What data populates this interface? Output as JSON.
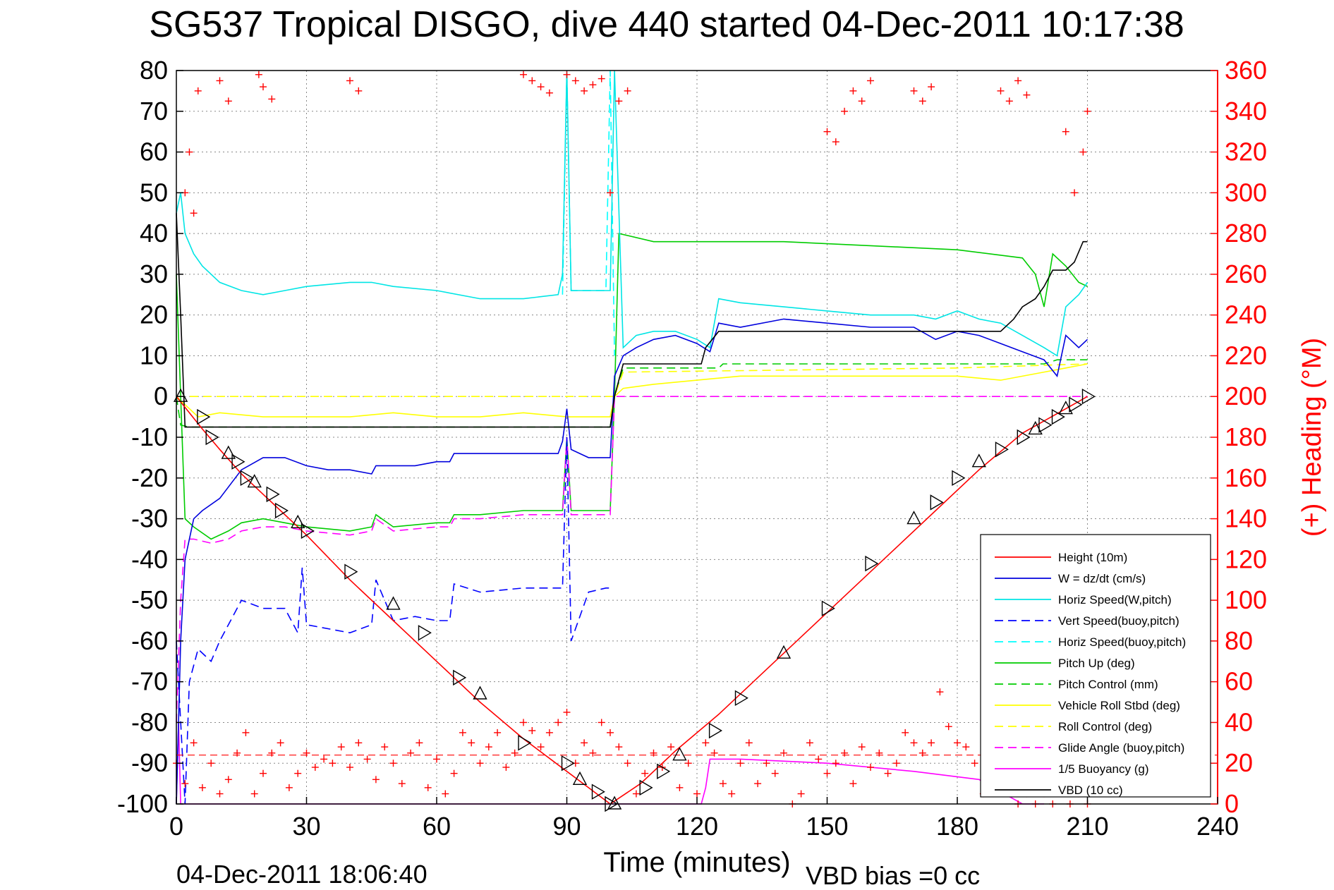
{
  "chart_data": {
    "type": "line",
    "title": "SG537 Tropical DISGO, dive 440 started 04-Dec-2011 10:17:38",
    "xlabel": "Time (minutes)",
    "ylabel_right": "(+) Heading (°M)",
    "footer_left": "04-Dec-2011 18:06:40",
    "footer_right": "VBD bias =0 cc",
    "xlim": [
      0,
      240
    ],
    "ylim_left": [
      -100,
      80
    ],
    "ylim_right": [
      0,
      360
    ],
    "x_ticks": [
      0,
      30,
      60,
      90,
      120,
      150,
      180,
      210,
      240
    ],
    "y_ticks_left": [
      80,
      70,
      60,
      50,
      40,
      30,
      20,
      10,
      0,
      -10,
      -20,
      -30,
      -40,
      -50,
      -60,
      -70,
      -80,
      -90,
      -100
    ],
    "y_ticks_right": [
      360,
      340,
      320,
      300,
      280,
      260,
      240,
      220,
      200,
      180,
      160,
      140,
      120,
      100,
      80,
      60,
      40,
      20,
      0
    ],
    "grid": true,
    "legend_position": "bottom-right",
    "colors": {
      "height": "#ff0000",
      "w": "#0000dd",
      "horiz": "#00e5e5",
      "pitch": "#00cc00",
      "roll": "#ffff00",
      "glide": "#ff00ff",
      "vbd": "#000000",
      "heading": "#ff0000",
      "axis_right": "#ff0000"
    },
    "series": [
      {
        "name": "Height (10m)",
        "color": "#ff0000",
        "dash": "solid",
        "x": [
          0,
          3,
          6,
          10,
          15,
          20,
          25,
          30,
          40,
          50,
          60,
          70,
          80,
          90,
          95,
          100,
          107,
          115,
          125,
          135,
          145,
          155,
          165,
          175,
          185,
          195,
          205,
          210
        ],
        "y": [
          0,
          -4,
          -8,
          -13,
          -19,
          -24,
          -29,
          -34,
          -45,
          -55,
          -65,
          -75,
          -84,
          -92,
          -96,
          -100,
          -95,
          -87,
          -78,
          -68,
          -58,
          -48,
          -38,
          -28,
          -18,
          -9,
          -3,
          0
        ]
      },
      {
        "name": "W = dz/dt (cm/s)",
        "color": "#0000dd",
        "dash": "solid",
        "x": [
          0,
          1,
          2,
          4,
          6,
          10,
          15,
          20,
          25,
          30,
          35,
          40,
          45,
          46,
          50,
          55,
          60,
          63,
          64,
          70,
          80,
          88,
          89,
          90,
          91,
          95,
          100,
          101,
          103,
          106,
          110,
          115,
          120,
          123,
          125,
          130,
          140,
          150,
          160,
          170,
          175,
          180,
          185,
          190,
          195,
          200,
          203,
          205,
          208,
          210
        ],
        "y": [
          -100,
          -60,
          -40,
          -30,
          -28,
          -25,
          -18,
          -15,
          -15,
          -17,
          -18,
          -18,
          -19,
          -17,
          -17,
          -17,
          -16,
          -16,
          -14,
          -14,
          -14,
          -14,
          -11,
          -3,
          -13,
          -15,
          -15,
          5,
          10,
          12,
          14,
          15,
          13,
          11,
          18,
          17,
          19,
          18,
          17,
          17,
          14,
          16,
          15,
          13,
          11,
          9,
          5,
          15,
          12,
          14
        ]
      },
      {
        "name": "Horiz Speed(W,pitch)",
        "color": "#00e5e5",
        "dash": "solid",
        "x": [
          0,
          1,
          2,
          4,
          6,
          10,
          15,
          20,
          25,
          30,
          40,
          45,
          50,
          60,
          70,
          80,
          88,
          89,
          90,
          91,
          95,
          100,
          101,
          103,
          106,
          110,
          115,
          120,
          123,
          125,
          130,
          140,
          150,
          160,
          170,
          175,
          180,
          185,
          190,
          195,
          200,
          203,
          205,
          208,
          210
        ],
        "y": [
          45,
          50,
          40,
          35,
          32,
          28,
          26,
          25,
          26,
          27,
          28,
          28,
          27,
          26,
          24,
          24,
          25,
          30,
          80,
          26,
          26,
          26,
          80,
          12,
          15,
          16,
          16,
          14,
          12,
          24,
          23,
          22,
          21,
          20,
          20,
          19,
          21,
          19,
          18,
          15,
          12,
          10,
          22,
          25,
          28
        ]
      },
      {
        "name": "Vert Speed(buoy,pitch)",
        "color": "#0000ff",
        "dash": "dashed",
        "x": [
          0,
          2,
          3,
          5,
          8,
          10,
          15,
          20,
          25,
          28,
          29,
          30,
          40,
          45,
          46,
          50,
          55,
          60,
          63,
          64,
          70,
          80,
          89,
          90,
          91,
          95,
          99,
          100
        ],
        "y": [
          -60,
          -100,
          -70,
          -62,
          -65,
          -60,
          -50,
          -52,
          -52,
          -58,
          -42,
          -56,
          -58,
          -56,
          -45,
          -55,
          -54,
          -55,
          -55,
          -46,
          -48,
          -47,
          -47,
          -10,
          -60,
          -48,
          -47,
          -47
        ]
      },
      {
        "name": "Horiz Speed(buoy,pitch)",
        "color": "#00ffff",
        "dash": "dashed",
        "x": [
          89,
          90,
          91,
          99,
          100,
          101
        ],
        "y": [
          25,
          80,
          26,
          26,
          80,
          10
        ]
      },
      {
        "name": "Pitch Up (deg)",
        "color": "#00cc00",
        "dash": "solid",
        "x": [
          0,
          1,
          2,
          4,
          8,
          12,
          15,
          20,
          25,
          30,
          40,
          45,
          46,
          50,
          60,
          63,
          64,
          70,
          80,
          89,
          90,
          91,
          99,
          100,
          101,
          102,
          110,
          120,
          125,
          140,
          160,
          180,
          195,
          198,
          200,
          202,
          205,
          208,
          210
        ],
        "y": [
          30,
          0,
          -30,
          -32,
          -35,
          -33,
          -31,
          -30,
          -31,
          -32,
          -33,
          -32,
          -29,
          -32,
          -31,
          -31,
          -29,
          -29,
          -28,
          -28,
          -10,
          -28,
          -28,
          -28,
          0,
          40,
          38,
          38,
          38,
          38,
          37,
          36,
          34,
          30,
          22,
          35,
          32,
          28,
          27
        ]
      },
      {
        "name": "Pitch Control (mm)",
        "color": "#00cc00",
        "dash": "dashed",
        "x": [
          0,
          1,
          3,
          100,
          101,
          103,
          125,
          126,
          180,
          200,
          203,
          210
        ],
        "y": [
          0,
          -7,
          -7.5,
          -7.5,
          0,
          7,
          7,
          8,
          8,
          8,
          9,
          9
        ]
      },
      {
        "name": "Vehicle Roll Stbd (deg)",
        "color": "#ffff00",
        "dash": "solid",
        "x": [
          0,
          5,
          10,
          20,
          30,
          40,
          50,
          60,
          70,
          80,
          90,
          100,
          101,
          103,
          110,
          120,
          130,
          140,
          150,
          160,
          170,
          180,
          190,
          200,
          205,
          210
        ],
        "y": [
          0,
          -5,
          -4,
          -5,
          -5,
          -5,
          -4,
          -5,
          -5,
          -4,
          -5,
          -5,
          0,
          2,
          3,
          4,
          5,
          5,
          5,
          5,
          5,
          5,
          4,
          6,
          7,
          8
        ]
      },
      {
        "name": "Roll Control (deg)",
        "color": "#ffff00",
        "dash": "dashed",
        "x": [
          0,
          10,
          45,
          100,
          101,
          103,
          180,
          210
        ],
        "y": [
          0,
          0,
          0,
          0,
          0,
          6,
          7,
          8
        ]
      },
      {
        "name": "Glide Angle (buoy,pitch)",
        "color": "#ff00ff",
        "dash": "dashed",
        "x": [
          0,
          1,
          2,
          4,
          8,
          12,
          15,
          20,
          25,
          30,
          40,
          45,
          46,
          50,
          60,
          63,
          64,
          70,
          80,
          89,
          90,
          91,
          99,
          100,
          101,
          210
        ],
        "y": [
          -80,
          -50,
          -35,
          -35,
          -36,
          -35,
          -33,
          -32,
          -32,
          -33,
          -34,
          -33,
          -30,
          -33,
          -32,
          -32,
          -30,
          -30,
          -29,
          -29,
          -10,
          -29,
          -29,
          -29,
          0,
          0
        ]
      },
      {
        "name": "1/5 Buoyancy (g)",
        "color": "#ff00ff",
        "dash": "solid",
        "x": [
          0,
          0.5,
          1,
          121,
          122,
          123,
          130,
          150,
          170,
          185,
          190,
          195,
          200
        ],
        "y": [
          -100,
          -80,
          -100,
          -100,
          -96,
          -89,
          -89,
          -90,
          -92,
          -94,
          -97,
          -100,
          -100
        ]
      },
      {
        "name": "VBD (10 cc)",
        "color": "#000000",
        "dash": "solid",
        "x": [
          0,
          1,
          2,
          100,
          101,
          103,
          121,
          122,
          125,
          190,
          193,
          195,
          198,
          200,
          202,
          205,
          207,
          209,
          210
        ],
        "y": [
          45,
          20,
          -7.5,
          -7.5,
          0,
          8,
          8,
          12,
          16,
          16,
          19,
          22,
          24,
          27,
          31,
          31,
          33,
          38,
          38
        ]
      }
    ],
    "heading_series": {
      "name": "Heading",
      "color": "#ff0000",
      "axis": "right",
      "mean": 24,
      "x": [
        0,
        2,
        4,
        6,
        8,
        10,
        12,
        14,
        16,
        18,
        20,
        22,
        24,
        26,
        28,
        30,
        32,
        34,
        36,
        38,
        40,
        42,
        44,
        46,
        48,
        50,
        52,
        54,
        56,
        58,
        60,
        62,
        64,
        66,
        68,
        70,
        72,
        74,
        76,
        78,
        80,
        82,
        84,
        86,
        88,
        90,
        92,
        94,
        96,
        98,
        100,
        102,
        104,
        106,
        108,
        110,
        112,
        114,
        116,
        118,
        120,
        122,
        124,
        126,
        128,
        130,
        132,
        134,
        136,
        138,
        140,
        142,
        144,
        146,
        148,
        150,
        152,
        154,
        156,
        158,
        160,
        162,
        164,
        166,
        168,
        170,
        172,
        174,
        176,
        178,
        180,
        182,
        184,
        186,
        188,
        190,
        192,
        194,
        196,
        198,
        200,
        202,
        204,
        206,
        208,
        210
      ],
      "y": [
        20,
        10,
        30,
        8,
        20,
        5,
        12,
        25,
        35,
        5,
        15,
        25,
        30,
        8,
        15,
        25,
        18,
        22,
        20,
        28,
        18,
        30,
        22,
        12,
        28,
        20,
        10,
        25,
        30,
        8,
        22,
        5,
        15,
        35,
        30,
        20,
        28,
        35,
        18,
        25,
        40,
        36,
        28,
        35,
        40,
        45,
        20,
        30,
        25,
        40,
        35,
        28,
        20,
        5,
        15,
        25,
        18,
        28,
        8,
        20,
        5,
        30,
        25,
        10,
        5,
        20,
        30,
        10,
        20,
        15,
        25,
        0,
        5,
        30,
        22,
        15,
        20,
        25,
        10,
        28,
        18,
        25,
        15,
        20,
        35,
        30,
        25,
        30,
        55,
        38,
        30,
        28,
        20,
        5,
        25,
        10,
        5,
        0,
        5,
        0,
        5,
        0,
        10,
        0,
        5,
        0
      ]
    },
    "heading_wraps": {
      "x": [
        2,
        3,
        4,
        5,
        10,
        12,
        19,
        20,
        22,
        40,
        42,
        80,
        82,
        84,
        86,
        90,
        92,
        94,
        96,
        98,
        100,
        102,
        104,
        150,
        152,
        154,
        156,
        158,
        160,
        170,
        172,
        174,
        190,
        192,
        194,
        196,
        205,
        207,
        209,
        210
      ],
      "y": [
        300,
        320,
        290,
        350,
        355,
        345,
        358,
        352,
        346,
        355,
        350,
        358,
        355,
        352,
        349,
        358,
        355,
        350,
        353,
        356,
        300,
        345,
        350,
        330,
        325,
        340,
        350,
        345,
        355,
        350,
        345,
        352,
        350,
        345,
        355,
        348,
        330,
        300,
        320,
        340
      ]
    },
    "dive_markers": {
      "x": [
        1,
        6,
        8,
        12,
        14,
        16,
        18,
        22,
        24,
        28,
        30,
        40,
        50,
        57,
        65,
        70,
        80,
        90,
        93,
        97,
        100,
        101,
        108,
        112,
        116,
        124,
        130,
        140,
        150,
        160,
        170,
        175,
        180,
        185,
        190,
        195,
        198,
        200,
        203,
        205,
        207,
        210
      ],
      "y": [
        0,
        -5,
        -10,
        -14,
        -16,
        -20,
        -21,
        -24,
        -28,
        -31,
        -33,
        -43,
        -51,
        -58,
        -69,
        -73,
        -85,
        -90,
        -94,
        -97,
        -100,
        -100,
        -96,
        -92,
        -88,
        -82,
        -74,
        -63,
        -52,
        -41,
        -30,
        -26,
        -20,
        -16,
        -13,
        -10,
        -8,
        -7,
        -5,
        -3,
        -2,
        0
      ]
    },
    "legend": [
      "Height (10m)",
      "W = dz/dt (cm/s)",
      "Horiz Speed(W,pitch)",
      "Vert Speed(buoy,pitch)",
      "Horiz Speed(buoy,pitch)",
      "Pitch Up (deg)",
      "Pitch Control (mm)",
      "Vehicle Roll Stbd (deg)",
      "Roll Control (deg)",
      "Glide Angle (buoy,pitch)",
      "1/5 Buoyancy (g)",
      "VBD (10 cc)"
    ]
  }
}
